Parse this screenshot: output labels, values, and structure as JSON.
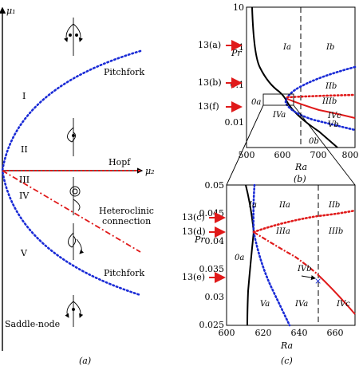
{
  "panel_a": {
    "axis_y": "μ₁",
    "axis_x": "μ₂",
    "curve_upper": "Pitchfork",
    "curve_hopf": "Hopf",
    "curve_het_1": "Heteroclinic",
    "curve_het_2": "connection",
    "curve_lower": "Pitchfork",
    "curve_saddle": "Saddle-node",
    "regions": [
      "I",
      "II",
      "III",
      "IV",
      "V"
    ],
    "caption": "(a)",
    "colors": {
      "pitchfork": "#1a2bd6",
      "hopf": "#e01a1a",
      "heteroclinic": "#e01a1a",
      "axis": "#000000"
    }
  },
  "panel_b": {
    "ylabel": "Pr",
    "xlabel": "Ra",
    "caption": "(b)",
    "yticks": [
      "10",
      "1",
      "0.1",
      "0.01"
    ],
    "xticks": [
      "500",
      "600",
      "700",
      "800"
    ],
    "markers": [
      "13(a)",
      "13(b)",
      "13(f)"
    ],
    "regions": [
      "Ia",
      "Ib",
      "IIb",
      "IIIb",
      "0a",
      "IVa",
      "IVc",
      "Vb",
      "0b"
    ],
    "dashed_line_ra": 650,
    "chart_data": {
      "type": "line",
      "xlim": [
        500,
        800
      ],
      "ylim": [
        0.002,
        10
      ],
      "yscale": "log",
      "series": [
        {
          "color": "black",
          "values": [
            [
              520,
              10
            ],
            [
              530,
              1.0
            ],
            [
              555,
              0.25
            ],
            [
              600,
              0.09
            ],
            [
              612,
              0.05
            ],
            [
              620,
              0.03
            ],
            [
              660,
              0.012
            ],
            [
              700,
              0.006
            ],
            [
              735,
              0.0025
            ]
          ]
        },
        {
          "color": "blue-dotted",
          "values": [
            [
              800,
              0.45
            ],
            [
              700,
              0.15
            ],
            [
              650,
              0.09
            ],
            [
              618,
              0.047
            ],
            [
              650,
              0.028
            ],
            [
              700,
              0.018
            ],
            [
              740,
              0.0125
            ],
            [
              800,
              0.008
            ]
          ]
        },
        {
          "color": "red-dotted",
          "values": [
            [
              615,
              0.043
            ],
            [
              700,
              0.046
            ],
            [
              800,
              0.05
            ]
          ]
        },
        {
          "color": "red-solid",
          "values": [
            [
              615,
              0.041
            ],
            [
              700,
              0.026
            ],
            [
              800,
              0.018
            ]
          ]
        }
      ]
    }
  },
  "panel_c": {
    "ylabel": "Pr",
    "xlabel": "Ra",
    "caption": "(c)",
    "yticks": [
      "0.05",
      "0.045",
      "0.04",
      "0.035",
      "0.03",
      "0.025"
    ],
    "xticks": [
      "600",
      "620",
      "640",
      "660"
    ],
    "markers": [
      "13(c)",
      "13(d)",
      "13(e)"
    ],
    "regions": [
      "Ia",
      "IIa",
      "IIb",
      "IIIa",
      "IIIb",
      "0a",
      "IVb",
      "Va",
      "IVa",
      "IVc"
    ],
    "dashed_line_ra": 651,
    "chart_data": {
      "type": "line",
      "xlim": [
        600,
        671
      ],
      "ylim": [
        0.025,
        0.05
      ],
      "series": [
        {
          "color": "black",
          "values": [
            [
              611,
              0.05
            ],
            [
              613,
              0.046
            ],
            [
              615,
              0.0415
            ],
            [
              614,
              0.037
            ],
            [
              613,
              0.033
            ],
            [
              612.5,
              0.029
            ],
            [
              612,
              0.025
            ]
          ]
        },
        {
          "color": "blue-dotted",
          "values": [
            [
              617,
              0.05
            ],
            [
              616,
              0.0465
            ],
            [
              615,
              0.0415
            ],
            [
              618,
              0.037
            ],
            [
              625,
              0.033
            ],
            [
              633,
              0.029
            ],
            [
              640,
              0.025
            ]
          ]
        },
        {
          "color": "red-dotted",
          "values": [
            [
              615,
              0.0415
            ],
            [
              630,
              0.0435
            ],
            [
              650,
              0.0448
            ],
            [
              671,
              0.0457
            ]
          ]
        },
        {
          "color": "red-solid",
          "values": [
            [
              615,
              0.0415
            ],
            [
              628,
              0.0385
            ],
            [
              640,
              0.0355
            ],
            [
              651,
              0.032
            ],
            [
              660,
              0.0295
            ],
            [
              671,
              0.027
            ]
          ]
        }
      ]
    }
  }
}
